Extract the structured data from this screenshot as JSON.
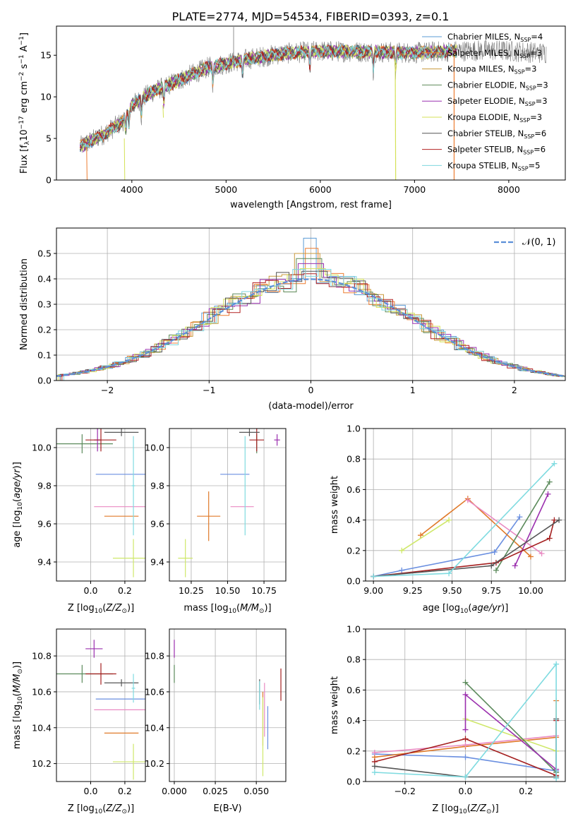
{
  "figure_title": "PLATE=2774, MJD=54534, FIBERID=0393, z=0.1",
  "colors": {
    "chab_miles": "#5b9bd5",
    "salp_miles": "#ed7d31",
    "krou_miles": "#c89a3c",
    "chab_elodie": "#5e8a58",
    "salp_elodie": "#9b30b0",
    "krou_elodie": "#d4e157",
    "chab_stelib": "#555555",
    "salp_stelib": "#b22222",
    "krou_stelib": "#7ed6df",
    "blue": "#6a8fe0",
    "orange": "#e07a2a",
    "pink": "#e98ac2",
    "lime": "#cfe86a",
    "green": "#5b8a5b",
    "purple": "#9b2fae",
    "dark": "#555555",
    "red": "#a52020",
    "cyan": "#7fdbe0",
    "gauss": "#5b8fd8"
  },
  "chart_data": [
    {
      "id": "spectrum",
      "type": "line",
      "xlabel": "wavelength [Angstrom, rest frame]",
      "ylabel": "Flux [f",
      "ylabel_rest": "10",
      "ylabel_units": "erg cm",
      "xlim": [
        3200,
        8600
      ],
      "ylim": [
        0,
        18.5
      ],
      "xticks": [
        "4000",
        "5000",
        "6000",
        "7000",
        "8000"
      ],
      "yticks": [
        "0",
        "5",
        "10",
        "15"
      ],
      "legend": [
        {
          "label": "Chabrier MILES, N",
          "n": "=4"
        },
        {
          "label": "Salpeter MILES, N",
          "n": "=3"
        },
        {
          "label": "Kroupa MILES, N",
          "n": "=3"
        },
        {
          "label": "Chabrier ELODIE, N",
          "n": "=3"
        },
        {
          "label": "Salpeter ELODIE, N",
          "n": "=3"
        },
        {
          "label": "Kroupa ELODIE, N",
          "n": "=3"
        },
        {
          "label": "Chabrier STELIB, N",
          "n": "=6"
        },
        {
          "label": "Salpeter STELIB, N",
          "n": "=6"
        },
        {
          "label": "Kroupa STELIB, N",
          "n": "=5"
        }
      ],
      "legend_sub": "SSP",
      "continuum": [
        [
          3450,
          4.0
        ],
        [
          3700,
          5.5
        ],
        [
          3900,
          7.0
        ],
        [
          4000,
          9.0
        ],
        [
          4200,
          10.5
        ],
        [
          4500,
          12.0
        ],
        [
          4800,
          13.5
        ],
        [
          5200,
          14.5
        ],
        [
          5600,
          15.2
        ],
        [
          6000,
          15.5
        ],
        [
          6500,
          15.4
        ],
        [
          7000,
          15.3
        ],
        [
          7400,
          15.5
        ],
        [
          7800,
          15.6
        ],
        [
          8200,
          15.4
        ],
        [
          8300,
          15.3
        ]
      ],
      "models_end": [
        3450,
        7450
      ],
      "data_end": [
        3450,
        8400
      ],
      "absorption_lines": [
        3934,
        3969,
        4102,
        4340,
        4861,
        5175,
        5890,
        6563,
        6800
      ],
      "spike_lines": [
        5080,
        7420
      ]
    },
    {
      "id": "residual-histogram",
      "type": "line",
      "xlabel": "(data-model)/error",
      "ylabel": "Normed distribution",
      "xlim": [
        -2.5,
        2.5
      ],
      "ylim": [
        0,
        0.6
      ],
      "xticks": [
        "−2",
        "−1",
        "0",
        "1",
        "2"
      ],
      "yticks": [
        "0.0",
        "0.1",
        "0.2",
        "0.3",
        "0.4",
        "0.5"
      ],
      "legend": "𝒩(0, 1)",
      "bin_width": 0.125,
      "peak_values": [
        0.56,
        0.52,
        0.5,
        0.48,
        0.46,
        0.44,
        0.43,
        0.42,
        0.41
      ]
    },
    {
      "id": "age-vs-Z",
      "type": "scatter",
      "xlabel": "Z [log",
      "ylabel": "age  [log",
      "xlim": [
        -0.2,
        0.32
      ],
      "ylim": [
        9.3,
        10.1
      ],
      "xticks": [
        "0.0",
        "0.2"
      ],
      "yticks": [
        "9.4",
        "9.6",
        "9.8",
        "10.0"
      ],
      "points": [
        {
          "c": "blue",
          "x": 0.18,
          "xe": 0.15,
          "y": 9.86,
          "ye": 0.0
        },
        {
          "c": "orange",
          "x": 0.18,
          "xe": 0.1,
          "y": 9.64,
          "ye": 0.0
        },
        {
          "c": "pink",
          "x": 0.17,
          "xe": 0.15,
          "y": 9.69,
          "ye": 0.0
        },
        {
          "c": "lime",
          "x": 0.25,
          "xe": 0.12,
          "y": 9.42,
          "ye": 0.1
        },
        {
          "c": "green",
          "x": -0.05,
          "xe": 0.18,
          "y": 10.02,
          "ye": 0.05
        },
        {
          "c": "purple",
          "x": 0.04,
          "xe": 0.02,
          "y": 10.04,
          "ye": 0.06
        },
        {
          "c": "red",
          "x": 0.06,
          "xe": 0.09,
          "y": 10.04,
          "ye": 0.06
        },
        {
          "c": "dark",
          "x": 0.18,
          "xe": 0.1,
          "y": 10.08,
          "ye": 0.02
        },
        {
          "c": "cyan",
          "x": 0.25,
          "xe": 0.01,
          "y": 9.8,
          "ye": 0.26
        }
      ]
    },
    {
      "id": "age-vs-mass",
      "type": "scatter",
      "xlabel": "mass [log",
      "xlim": [
        10.1,
        10.9
      ],
      "ylim": [
        9.3,
        10.1
      ],
      "xticks": [
        "10.25",
        "10.50",
        "10.75"
      ],
      "yticks": [
        "9.4",
        "9.6",
        "9.8",
        "10.0"
      ],
      "points": [
        {
          "c": "blue",
          "x": 10.55,
          "xe": 0.1,
          "y": 9.86,
          "ye": 0.0
        },
        {
          "c": "orange",
          "x": 10.37,
          "xe": 0.08,
          "y": 9.64,
          "ye": 0.13
        },
        {
          "c": "pink",
          "x": 10.6,
          "xe": 0.08,
          "y": 9.69,
          "ye": 0.0
        },
        {
          "c": "lime",
          "x": 10.21,
          "xe": 0.05,
          "y": 9.42,
          "ye": 0.1
        },
        {
          "c": "green",
          "x": 10.7,
          "xe": 0.0,
          "y": 10.02,
          "ye": 0.05
        },
        {
          "c": "purple",
          "x": 10.84,
          "xe": 0.02,
          "y": 10.04,
          "ye": 0.03
        },
        {
          "c": "red",
          "x": 10.7,
          "xe": 0.05,
          "y": 10.04,
          "ye": 0.06
        },
        {
          "c": "dark",
          "x": 10.65,
          "xe": 0.07,
          "y": 10.08,
          "ye": 0.02
        },
        {
          "c": "cyan",
          "x": 10.62,
          "xe": 0.0,
          "y": 9.8,
          "ye": 0.26
        }
      ]
    },
    {
      "id": "mass-weight-vs-age",
      "type": "line",
      "xlabel": "age  [log",
      "ylabel": "mass weight",
      "xlim": [
        8.95,
        10.22
      ],
      "ylim": [
        0,
        1.0
      ],
      "xticks": [
        "9.00",
        "9.25",
        "9.50",
        "9.75",
        "10.00"
      ],
      "yticks": [
        "0.0",
        "0.2",
        "0.4",
        "0.6",
        "0.8",
        "1.0"
      ],
      "series": [
        {
          "c": "blue",
          "x": [
            9.0,
            9.18,
            9.77,
            9.93
          ],
          "y": [
            0.03,
            0.07,
            0.19,
            0.42
          ]
        },
        {
          "c": "orange",
          "x": [
            9.3,
            9.6,
            10.0
          ],
          "y": [
            0.3,
            0.54,
            0.16
          ]
        },
        {
          "c": "pink",
          "x": [
            9.6,
            10.07
          ],
          "y": [
            0.53,
            0.18
          ]
        },
        {
          "c": "lime",
          "x": [
            9.18,
            9.48
          ],
          "y": [
            0.2,
            0.4
          ]
        },
        {
          "c": "green",
          "x": [
            9.78,
            10.12
          ],
          "y": [
            0.07,
            0.65
          ]
        },
        {
          "c": "purple",
          "x": [
            9.9,
            10.11
          ],
          "y": [
            0.1,
            0.57
          ]
        },
        {
          "c": "red",
          "x": [
            9.0,
            9.78,
            10.12,
            10.15
          ],
          "y": [
            0.03,
            0.12,
            0.28,
            0.4
          ]
        },
        {
          "c": "dark",
          "x": [
            9.0,
            9.75,
            10.18
          ],
          "y": [
            0.03,
            0.1,
            0.4
          ]
        },
        {
          "c": "cyan",
          "x": [
            9.0,
            9.48,
            10.15
          ],
          "y": [
            0.03,
            0.05,
            0.77
          ]
        }
      ]
    },
    {
      "id": "mass-vs-Z",
      "type": "scatter",
      "xlabel": "Z [log",
      "ylabel": "mass [log",
      "xlim": [
        -0.2,
        0.32
      ],
      "ylim": [
        10.1,
        10.95
      ],
      "xticks": [
        "0.0",
        "0.2"
      ],
      "yticks": [
        "10.2",
        "10.4",
        "10.6",
        "10.8"
      ],
      "points": [
        {
          "c": "blue",
          "x": 0.18,
          "xe": 0.15,
          "y": 10.56,
          "ye": 0.0
        },
        {
          "c": "orange",
          "x": 0.18,
          "xe": 0.1,
          "y": 10.37,
          "ye": 0.0
        },
        {
          "c": "pink",
          "x": 0.17,
          "xe": 0.15,
          "y": 10.5,
          "ye": 0.0
        },
        {
          "c": "lime",
          "x": 0.25,
          "xe": 0.12,
          "y": 10.21,
          "ye": 0.1
        },
        {
          "c": "green",
          "x": -0.05,
          "xe": 0.18,
          "y": 10.7,
          "ye": 0.05
        },
        {
          "c": "purple",
          "x": 0.02,
          "xe": 0.05,
          "y": 10.84,
          "ye": 0.05
        },
        {
          "c": "red",
          "x": 0.06,
          "xe": 0.09,
          "y": 10.7,
          "ye": 0.06
        },
        {
          "c": "dark",
          "x": 0.18,
          "xe": 0.1,
          "y": 10.65,
          "ye": 0.02
        },
        {
          "c": "cyan",
          "x": 0.25,
          "xe": 0.01,
          "y": 10.62,
          "ye": 0.08
        }
      ]
    },
    {
      "id": "mass-vs-EBV",
      "type": "scatter",
      "xlabel": "E(B-V)",
      "xlim": [
        -0.003,
        0.068
      ],
      "ylim": [
        10.1,
        10.95
      ],
      "xticks": [
        "0.000",
        "0.025",
        "0.050"
      ],
      "yticks": [
        "10.2",
        "10.4",
        "10.6",
        "10.8"
      ],
      "points": [
        {
          "c": "blue",
          "x": 0.057,
          "xe": 0.0,
          "y": 10.4,
          "ye": 0.12
        },
        {
          "c": "orange",
          "x": 0.054,
          "xe": 0.0,
          "y": 10.45,
          "ye": 0.15
        },
        {
          "c": "pink",
          "x": 0.055,
          "xe": 0.0,
          "y": 10.5,
          "ye": 0.15
        },
        {
          "c": "lime",
          "x": 0.054,
          "xe": 0.0,
          "y": 10.35,
          "ye": 0.22
        },
        {
          "c": "green",
          "x": 0.0,
          "xe": 0.0,
          "y": 10.7,
          "ye": 0.05
        },
        {
          "c": "purple",
          "x": 0.0,
          "xe": 0.0,
          "y": 10.84,
          "ye": 0.05
        },
        {
          "c": "red",
          "x": 0.065,
          "xe": 0.0,
          "y": 10.64,
          "ye": 0.09
        },
        {
          "c": "dark",
          "x": 0.052,
          "xe": 0.0,
          "y": 10.6,
          "ye": 0.07
        },
        {
          "c": "cyan",
          "x": 0.052,
          "xe": 0.0,
          "y": 10.58,
          "ye": 0.08
        }
      ]
    },
    {
      "id": "mass-weight-vs-Z",
      "type": "line",
      "xlabel": "Z [log",
      "ylabel": "mass weight",
      "xlim": [
        -0.33,
        0.33
      ],
      "ylim": [
        0,
        1.0
      ],
      "xticks": [
        "−0.2",
        "0.0",
        "0.2"
      ],
      "yticks": [
        "0.0",
        "0.2",
        "0.4",
        "0.6",
        "0.8",
        "1.0"
      ],
      "series": [
        {
          "c": "blue",
          "x": [
            -0.3,
            0.0,
            0.3
          ],
          "y": [
            0.18,
            0.16,
            0.07
          ]
        },
        {
          "c": "orange",
          "x": [
            -0.3,
            0.0,
            0.3,
            0.3
          ],
          "y": [
            0.16,
            0.23,
            0.29,
            0.53
          ]
        },
        {
          "c": "pink",
          "x": [
            -0.3,
            0.0,
            0.3
          ],
          "y": [
            0.19,
            0.24,
            0.3
          ]
        },
        {
          "c": "lime",
          "x": [
            0.0,
            0.3
          ],
          "y": [
            0.41,
            0.2
          ]
        },
        {
          "c": "green",
          "x": [
            0.0,
            0.3
          ],
          "y": [
            0.65,
            0.06
          ]
        },
        {
          "c": "purple",
          "x": [
            0.0,
            0.0,
            0.3
          ],
          "y": [
            0.34,
            0.57,
            0.08
          ]
        },
        {
          "c": "red",
          "x": [
            -0.3,
            0.0,
            0.3,
            0.3
          ],
          "y": [
            0.13,
            0.28,
            0.04,
            0.4
          ]
        },
        {
          "c": "dark",
          "x": [
            -0.3,
            0.0,
            0.3,
            0.3
          ],
          "y": [
            0.1,
            0.03,
            0.03,
            0.41
          ]
        },
        {
          "c": "cyan",
          "x": [
            -0.3,
            0.0,
            0.3,
            0.3
          ],
          "y": [
            0.06,
            0.03,
            0.77,
            0.02
          ]
        }
      ]
    }
  ]
}
